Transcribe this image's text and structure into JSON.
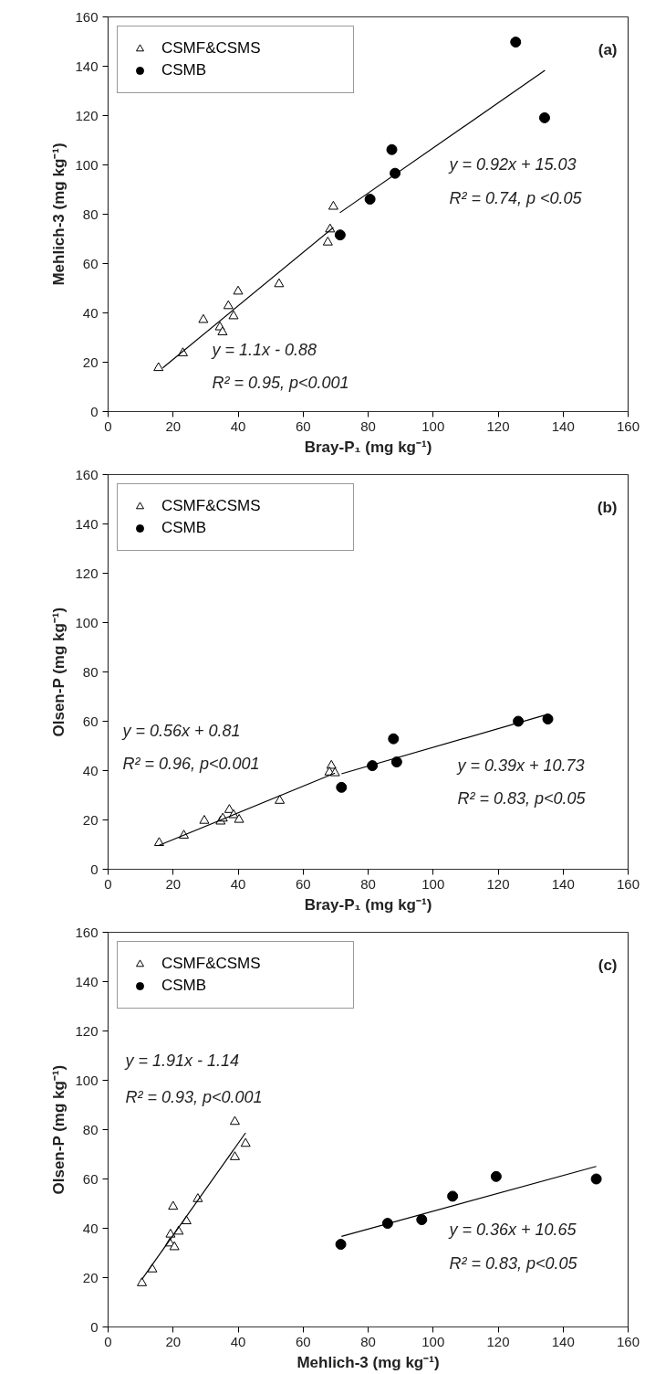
{
  "chart_data": [
    {
      "type": "scatter",
      "title": "(a)",
      "xlabel": "Bray-P₁ (mg kg⁻¹)",
      "ylabel": "Mehlich-3 (mg kg⁻¹)",
      "xlim": [
        0,
        160
      ],
      "ylim": [
        0,
        160
      ],
      "xticks": [
        0,
        20,
        40,
        60,
        80,
        100,
        120,
        140,
        160
      ],
      "yticks": [
        0,
        20,
        40,
        60,
        80,
        100,
        120,
        140,
        160
      ],
      "grid": false,
      "legend": "top left",
      "series": [
        {
          "name": "CSMF&CSMS",
          "marker": "triangle",
          "color": "#000000",
          "x": [
            15.5,
            23,
            29.3,
            34.4,
            35.2,
            37,
            38.6,
            40,
            52.6,
            67.6,
            68.3,
            69.3
          ],
          "values": [
            17.7,
            23.7,
            37.2,
            34.2,
            32.2,
            42.8,
            38.7,
            48.7,
            51.7,
            68.6,
            73.9,
            83.1
          ]
        },
        {
          "name": "CSMB",
          "marker": "circle",
          "color": "#000000",
          "x": [
            71.4,
            80.6,
            87.3,
            88.3,
            125.4,
            134.3
          ],
          "values": [
            71.6,
            86.1,
            106.2,
            96.6,
            149.8,
            119.1
          ]
        },
        {
          "type": "line",
          "color": "#000000",
          "x": [
            16.8,
            69.3
          ],
          "values": [
            17.7,
            74.6
          ]
        },
        {
          "type": "line",
          "color": "#000000",
          "x": [
            71.3,
            134.4
          ],
          "values": [
            80.6,
            138.3
          ]
        }
      ],
      "annotations": [
        "y = 0.92x + 15.03",
        "R² = 0.74, p <0.05",
        "y = 1.1x - 0.88",
        "R² = 0.95, p<0.001"
      ]
    },
    {
      "type": "scatter",
      "title": "(b)",
      "xlabel": "Bray-P₁ (mg kg⁻¹)",
      "ylabel": "Olsen-P (mg kg⁻¹)",
      "xlim": [
        0,
        160
      ],
      "ylim": [
        0,
        160
      ],
      "xticks": [
        0,
        20,
        40,
        60,
        80,
        100,
        120,
        140,
        160
      ],
      "yticks": [
        0,
        20,
        40,
        60,
        80,
        100,
        120,
        140,
        160
      ],
      "grid": false,
      "legend": "top left",
      "series": [
        {
          "name": "CSMF&CSMS",
          "marker": "triangle",
          "color": "#000000",
          "x": [
            15.7,
            23.3,
            29.6,
            34.6,
            35.3,
            37.3,
            38.6,
            40.3,
            52.8,
            68.7,
            68.1,
            69.8
          ],
          "values": [
            10.7,
            13.7,
            19.7,
            19.4,
            20.6,
            24.1,
            22,
            20.1,
            27.8,
            42,
            39.3,
            39
          ]
        },
        {
          "name": "CSMB",
          "marker": "circle",
          "color": "#000000",
          "x": [
            71.8,
            81.3,
            87.8,
            88.8,
            126.2,
            135.3
          ],
          "values": [
            33.2,
            42,
            52.9,
            43.5,
            60,
            60.9
          ]
        },
        {
          "type": "line",
          "color": "#000000",
          "x": [
            15.7,
            69.8
          ],
          "values": [
            9.7,
            39
          ]
        },
        {
          "type": "line",
          "color": "#000000",
          "x": [
            71.8,
            135.5
          ],
          "values": [
            38.7,
            62.9
          ]
        }
      ],
      "annotations": [
        "y = 0.56x + 0.81",
        "R² = 0.96, p<0.001",
        "y = 0.39x + 10.73",
        "R² = 0.83, p<0.05"
      ]
    },
    {
      "type": "scatter",
      "title": "(c)",
      "xlabel": "Mehlich-3 (mg kg⁻¹)",
      "ylabel": "Olsen-P (mg kg⁻¹)",
      "xlim": [
        0,
        160
      ],
      "ylim": [
        0,
        160
      ],
      "xticks": [
        0,
        20,
        40,
        60,
        80,
        100,
        120,
        140,
        160
      ],
      "yticks": [
        0,
        20,
        40,
        60,
        80,
        100,
        120,
        140,
        160
      ],
      "grid": false,
      "legend": "top left",
      "series": [
        {
          "name": "CSMF&CSMS",
          "marker": "triangle",
          "color": "#000000",
          "x": [
            10.4,
            13.6,
            19.2,
            19,
            20,
            20.4,
            21.7,
            24.1,
            27.6,
            39,
            39,
            42.3
          ],
          "values": [
            17.8,
            23.4,
            37.5,
            33.9,
            48.8,
            32.4,
            38.7,
            42.9,
            51.9,
            83.2,
            68.9,
            74.3
          ]
        },
        {
          "name": "CSMB",
          "marker": "circle",
          "color": "#000000",
          "x": [
            71.6,
            86,
            96.5,
            106,
            119.4,
            150.2
          ],
          "values": [
            33.5,
            42,
            43.5,
            53,
            61,
            60
          ]
        },
        {
          "type": "line",
          "color": "#000000",
          "x": [
            10.4,
            42.3
          ],
          "values": [
            19.3,
            78.7
          ]
        },
        {
          "type": "line",
          "color": "#000000",
          "x": [
            71.8,
            150.2
          ],
          "values": [
            36.7,
            65.1
          ]
        }
      ],
      "annotations": [
        "y = 1.91x - 1.14",
        "R² = 0.93, p<0.001",
        "y = 0.36x + 10.65",
        "R² = 0.83, p<0.05"
      ]
    }
  ]
}
